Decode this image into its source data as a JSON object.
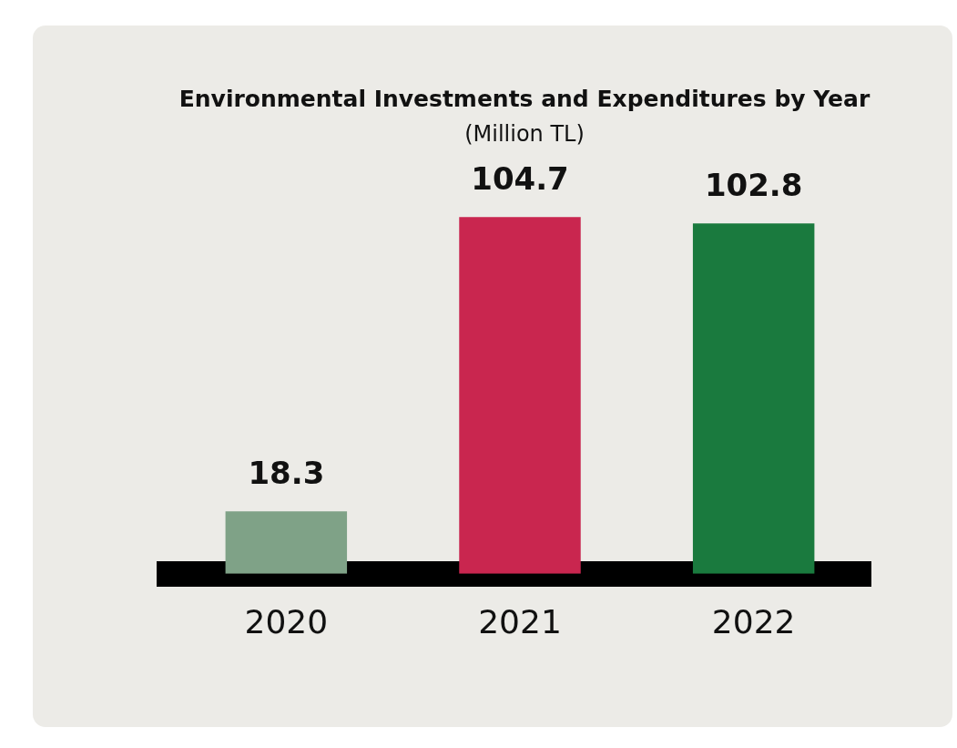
{
  "chart_data": {
    "type": "bar",
    "title": "Environmental Investments and Expenditures by Year",
    "subtitle": "(Million TL)",
    "categories": [
      "2020",
      "2021",
      "2022"
    ],
    "values": [
      18.3,
      104.7,
      102.8
    ],
    "colors": [
      "#7fa287",
      "#c9264f",
      "#1a7a3e"
    ],
    "data_labels": true,
    "grid": false,
    "legend": false
  }
}
